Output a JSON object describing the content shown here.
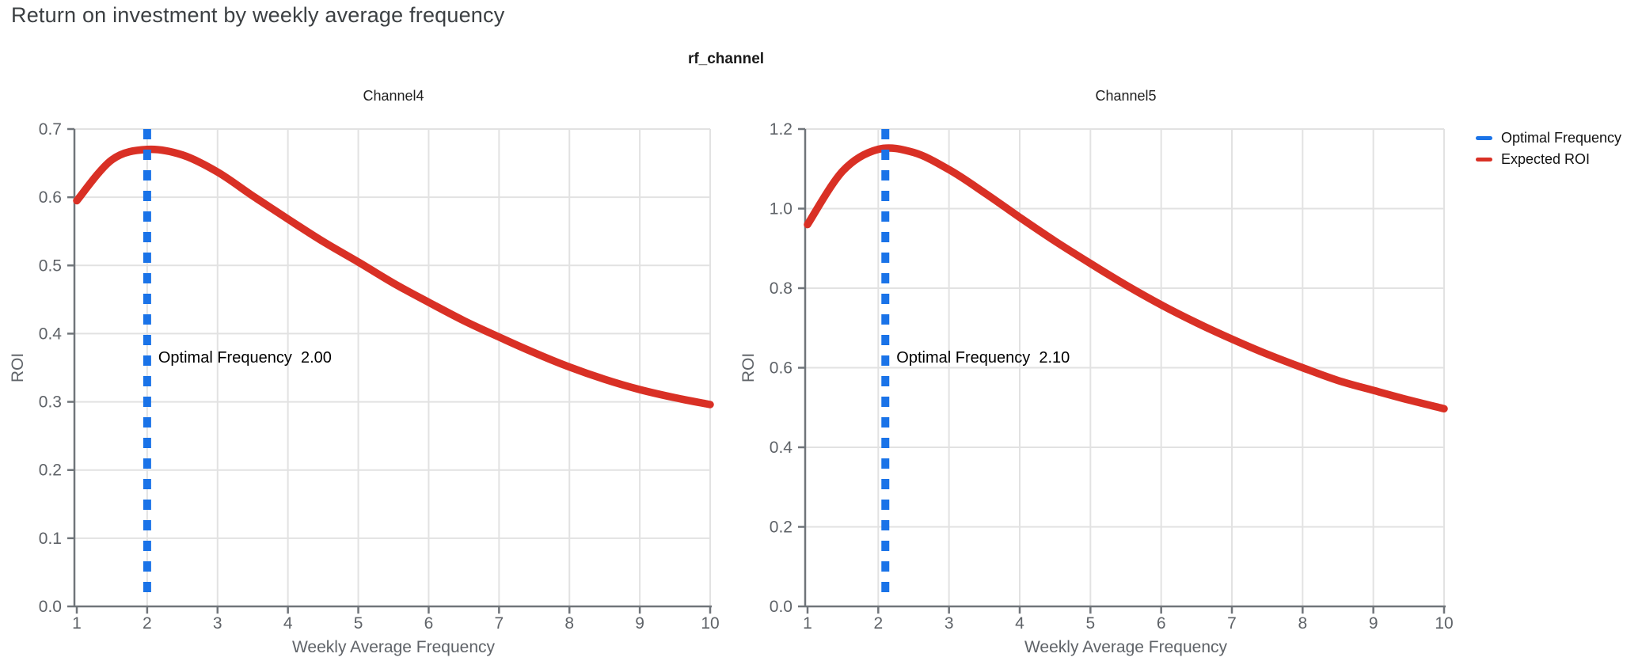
{
  "page": {
    "title": "Return on investment by weekly average frequency",
    "figure_title": "rf_channel"
  },
  "colors": {
    "optimal_frequency_line": "#1A73E8",
    "expected_roi_line": "#D93025",
    "grid": "#E2E2E2",
    "axis": "#70757A",
    "tick_label": "#5F6368",
    "page_title": "#3C4043",
    "panel_title": "#1F1F1F",
    "annotation": "#000000",
    "background": "#FFFFFF"
  },
  "legend": {
    "items": [
      {
        "label": "Optimal Frequency",
        "color": "#1A73E8"
      },
      {
        "label": "Expected ROI",
        "color": "#D93025"
      }
    ]
  },
  "chart_data": [
    {
      "type": "line",
      "title": "Channel4",
      "xlabel": "Weekly Average Frequency",
      "ylabel": "ROI",
      "xlim": [
        1,
        10
      ],
      "ylim": [
        0,
        0.7
      ],
      "grid": true,
      "x_ticks": [
        {
          "value": 1,
          "label": "1"
        },
        {
          "value": 2,
          "label": "2"
        },
        {
          "value": 3,
          "label": "3"
        },
        {
          "value": 4,
          "label": "4"
        },
        {
          "value": 5,
          "label": "5"
        },
        {
          "value": 6,
          "label": "6"
        },
        {
          "value": 7,
          "label": "7"
        },
        {
          "value": 8,
          "label": "8"
        },
        {
          "value": 9,
          "label": "9"
        },
        {
          "value": 10,
          "label": "10"
        }
      ],
      "y_ticks": [
        {
          "value": 0.0,
          "label": "0.0"
        },
        {
          "value": 0.1,
          "label": "0.1"
        },
        {
          "value": 0.2,
          "label": "0.2"
        },
        {
          "value": 0.3,
          "label": "0.3"
        },
        {
          "value": 0.4,
          "label": "0.4"
        },
        {
          "value": 0.5,
          "label": "0.5"
        },
        {
          "value": 0.6,
          "label": "0.6"
        },
        {
          "value": 0.7,
          "label": "0.7"
        }
      ],
      "optimal_frequency": {
        "value": 2.0,
        "annotation_label": "Optimal Frequency",
        "annotation_value": "2.00"
      },
      "series": [
        {
          "name": "Expected ROI",
          "x": [
            1,
            1.5,
            2,
            2.5,
            3,
            3.5,
            4,
            4.5,
            5,
            5.5,
            6,
            6.5,
            7,
            7.5,
            8,
            8.5,
            9,
            9.5,
            10
          ],
          "y": [
            0.595,
            0.655,
            0.67,
            0.662,
            0.637,
            0.602,
            0.568,
            0.535,
            0.505,
            0.474,
            0.446,
            0.419,
            0.395,
            0.372,
            0.351,
            0.333,
            0.318,
            0.306,
            0.296
          ]
        }
      ]
    },
    {
      "type": "line",
      "title": "Channel5",
      "xlabel": "Weekly Average Frequency",
      "ylabel": "ROI",
      "xlim": [
        1,
        10
      ],
      "ylim": [
        0,
        1.2
      ],
      "grid": true,
      "x_ticks": [
        {
          "value": 1,
          "label": "1"
        },
        {
          "value": 2,
          "label": "2"
        },
        {
          "value": 3,
          "label": "3"
        },
        {
          "value": 4,
          "label": "4"
        },
        {
          "value": 5,
          "label": "5"
        },
        {
          "value": 6,
          "label": "6"
        },
        {
          "value": 7,
          "label": "7"
        },
        {
          "value": 8,
          "label": "8"
        },
        {
          "value": 9,
          "label": "9"
        },
        {
          "value": 10,
          "label": "10"
        }
      ],
      "y_ticks": [
        {
          "value": 0.0,
          "label": "0.0"
        },
        {
          "value": 0.2,
          "label": "0.2"
        },
        {
          "value": 0.4,
          "label": "0.4"
        },
        {
          "value": 0.6,
          "label": "0.6"
        },
        {
          "value": 0.8,
          "label": "0.8"
        },
        {
          "value": 1.0,
          "label": "1.0"
        },
        {
          "value": 1.2,
          "label": "1.2"
        }
      ],
      "optimal_frequency": {
        "value": 2.1,
        "annotation_label": "Optimal Frequency",
        "annotation_value": "2.10"
      },
      "series": [
        {
          "name": "Expected ROI",
          "x": [
            1,
            1.5,
            2,
            2.5,
            3,
            3.5,
            4,
            4.5,
            5,
            5.5,
            6,
            6.5,
            7,
            7.5,
            8,
            8.5,
            9,
            9.5,
            10
          ],
          "y": [
            0.96,
            1.095,
            1.149,
            1.141,
            1.098,
            1.04,
            0.978,
            0.918,
            0.862,
            0.808,
            0.758,
            0.713,
            0.672,
            0.634,
            0.6,
            0.568,
            0.543,
            0.519,
            0.497
          ]
        }
      ]
    }
  ]
}
